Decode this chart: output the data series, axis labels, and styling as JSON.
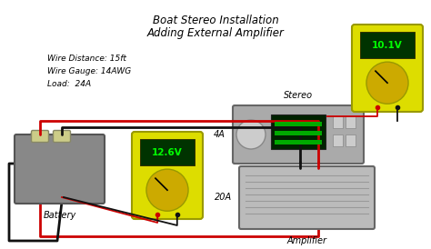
{
  "title_line1": "Boat Stereo Installation",
  "title_line2": "Adding External Amplifier",
  "info_text": "Wire Distance: 15ft\nWire Gauge: 14AWG\nLoad:  24A",
  "label_battery": "Battery",
  "label_stereo": "Stereo",
  "label_amplifier": "Amplifier",
  "label_4a": "4A",
  "label_20a": "20A",
  "voltage_battery": "12.6V",
  "voltage_stereo": "10.1V",
  "bg_color": "#ffffff",
  "battery_color": "#888888",
  "stereo_color": "#aaaaaa",
  "amplifier_color": "#bbbbbb",
  "mm_body": "#dddd00",
  "mm_border": "#999900",
  "mm_screen_bg": "#003300",
  "mm_screen_fg": "#00ff00",
  "mm_dial": "#ccaa00",
  "wire_red": "#cc0000",
  "wire_black": "#111111",
  "terminal_color": "#cccc88"
}
